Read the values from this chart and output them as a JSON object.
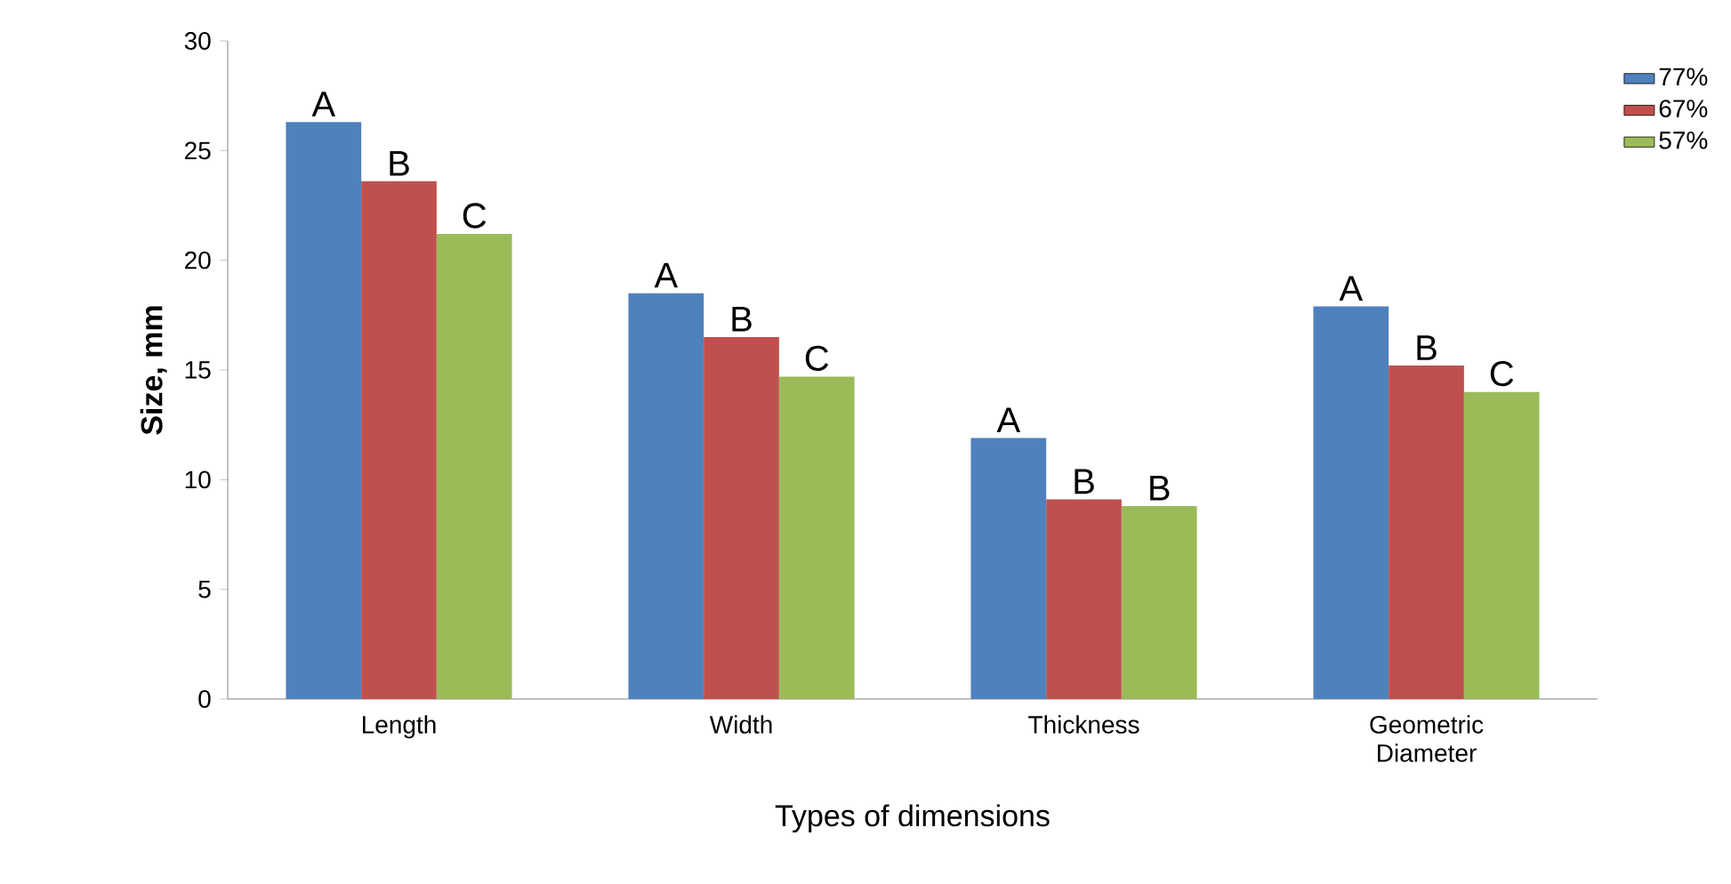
{
  "chart_data": {
    "type": "bar",
    "xlabel": "Types of dimensions",
    "ylabel": "Size, mm",
    "categories": [
      "Length",
      "Width",
      "Thickness",
      "Geometric Diameter"
    ],
    "series": [
      {
        "name": "77%",
        "color": "#4f81bd",
        "values": [
          26.3,
          18.5,
          11.9,
          17.9
        ],
        "value_labels": [
          "A",
          "A",
          "A",
          "A"
        ]
      },
      {
        "name": "67%",
        "color": "#c0504d",
        "values": [
          23.6,
          16.5,
          9.1,
          15.2
        ],
        "value_labels": [
          "B",
          "B",
          "B",
          "B"
        ]
      },
      {
        "name": "57%",
        "color": "#9bbb59",
        "values": [
          21.2,
          14.7,
          8.8,
          14.0
        ],
        "value_labels": [
          "C",
          "C",
          "B",
          "C"
        ]
      }
    ],
    "ylim": [
      0,
      30
    ],
    "yticks": [
      0,
      5,
      10,
      15,
      20,
      25,
      30
    ],
    "legend": "top right"
  }
}
